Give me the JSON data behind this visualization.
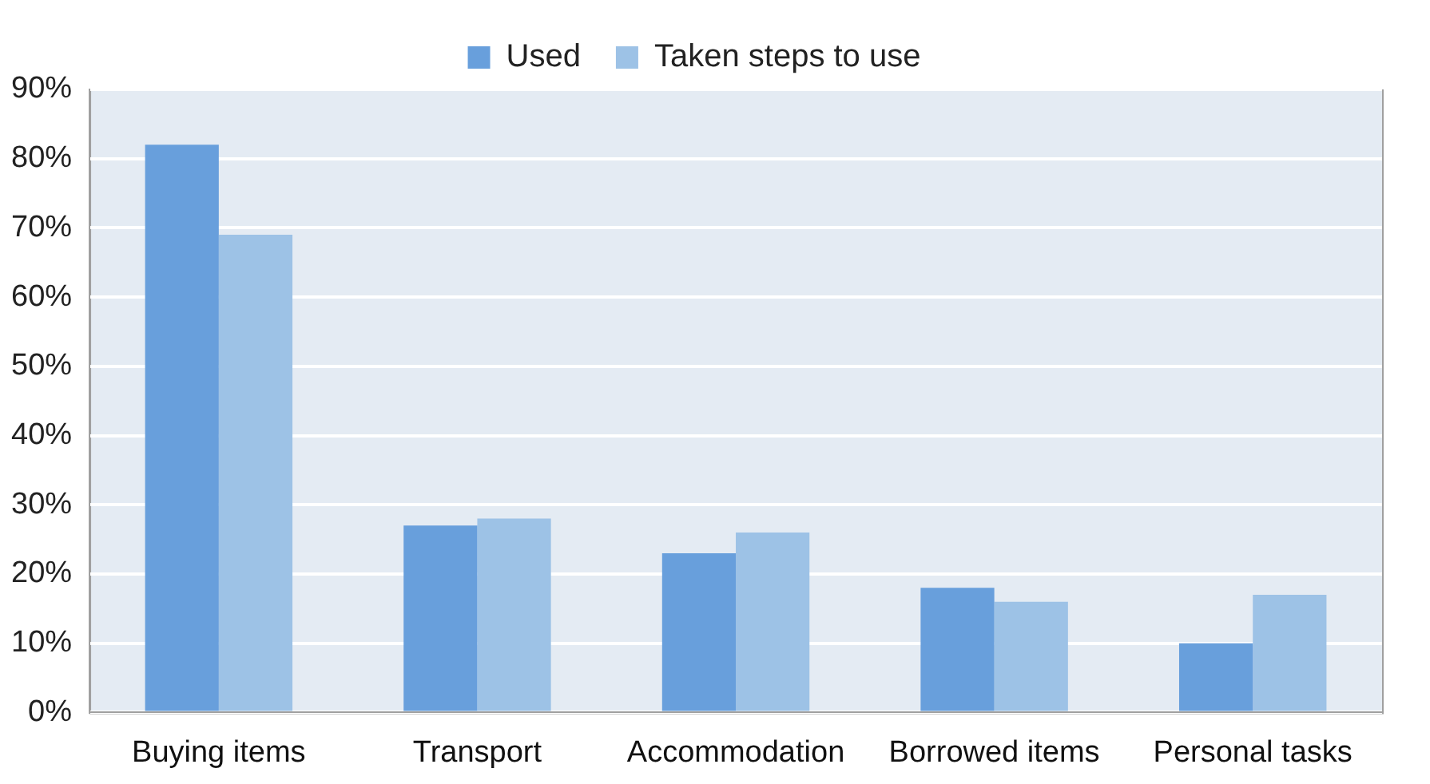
{
  "chart_data": {
    "type": "bar",
    "categories": [
      "Buying items",
      "Transport",
      "Accommodation",
      "Borrowed items",
      "Personal tasks"
    ],
    "series": [
      {
        "name": "Used",
        "color": "#689fdc",
        "values": [
          82,
          27,
          23,
          18,
          10
        ]
      },
      {
        "name": "Taken steps to use",
        "color": "#9dc2e6",
        "values": [
          69,
          28,
          26,
          16,
          17
        ]
      }
    ],
    "ylim": [
      0,
      90
    ],
    "yticks": [
      {
        "value": 0,
        "label": "0%"
      },
      {
        "value": 10,
        "label": "10%"
      },
      {
        "value": 20,
        "label": "20%"
      },
      {
        "value": 30,
        "label": "30%"
      },
      {
        "value": 40,
        "label": "40%"
      },
      {
        "value": 50,
        "label": "50%"
      },
      {
        "value": 60,
        "label": "60%"
      },
      {
        "value": 70,
        "label": "70%"
      },
      {
        "value": 80,
        "label": "80%"
      },
      {
        "value": 90,
        "label": "90%"
      }
    ],
    "grid": "y",
    "legend": "top"
  }
}
